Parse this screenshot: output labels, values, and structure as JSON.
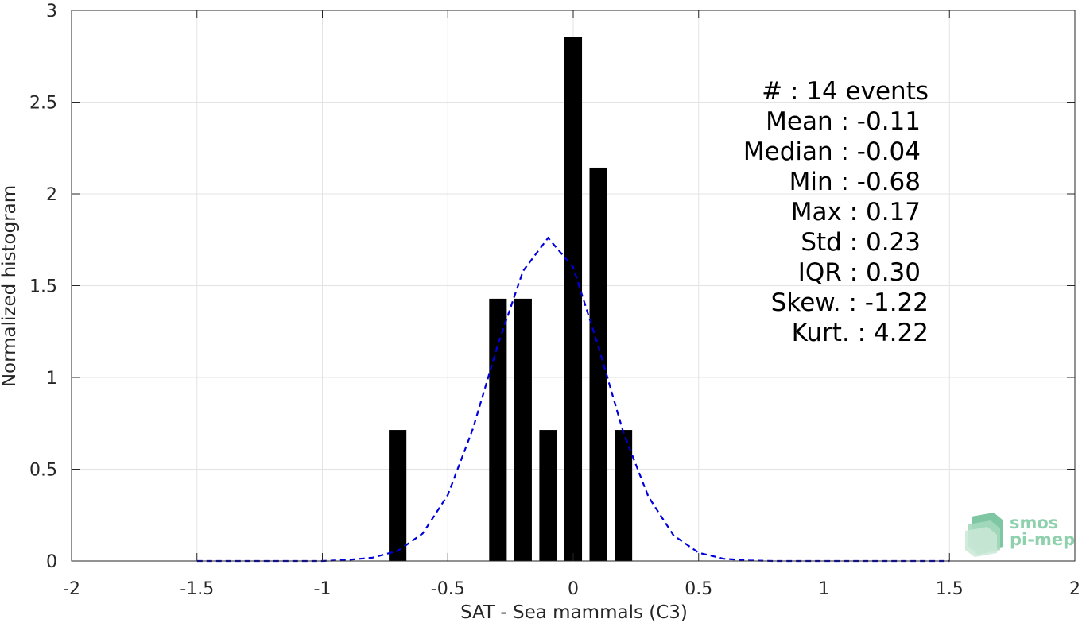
{
  "chart_data": {
    "type": "bar",
    "xlabel": "SAT - Sea mammals (C3)",
    "ylabel": "Normalized histogram",
    "xlim": [
      -2,
      2
    ],
    "ylim": [
      0,
      3
    ],
    "xticks": [
      -2,
      -1.5,
      -1,
      -0.5,
      0,
      0.5,
      1,
      1.5,
      2
    ],
    "xtick_labels": [
      "-2",
      "-1.5",
      "-1",
      "-0.5",
      "0",
      "0.5",
      "1",
      "1.5",
      "2"
    ],
    "yticks": [
      0,
      0.5,
      1,
      1.5,
      2,
      2.5,
      3
    ],
    "ytick_labels": [
      "0",
      "0.5",
      "1",
      "1.5",
      "2",
      "2.5",
      "3"
    ],
    "grid": true,
    "bar_width": 0.07,
    "bar_color": "#000000",
    "bars": [
      {
        "x": -0.7,
        "value": 0.714
      },
      {
        "x": -0.3,
        "value": 1.429
      },
      {
        "x": -0.2,
        "value": 1.429
      },
      {
        "x": -0.1,
        "value": 0.714
      },
      {
        "x": 0.0,
        "value": 2.857
      },
      {
        "x": 0.1,
        "value": 2.143
      },
      {
        "x": 0.2,
        "value": 0.714
      }
    ],
    "fit_curve": {
      "style": "dashed",
      "color": "#0000dd",
      "x": [
        -1.5,
        -1.4,
        -1.3,
        -1.2,
        -1.1,
        -1.0,
        -0.9,
        -0.8,
        -0.7,
        -0.6,
        -0.5,
        -0.4,
        -0.3,
        -0.2,
        -0.1,
        0.0,
        0.1,
        0.2,
        0.3,
        0.4,
        0.5,
        0.6,
        0.7,
        0.8,
        0.9,
        1.0,
        1.1,
        1.2,
        1.3,
        1.4,
        1.5
      ],
      "y": [
        0,
        0,
        0,
        0,
        0,
        0,
        0.006,
        0.018,
        0.055,
        0.15,
        0.36,
        0.72,
        1.18,
        1.58,
        1.76,
        1.6,
        1.17,
        0.7,
        0.35,
        0.14,
        0.045,
        0.012,
        0.003,
        0,
        0,
        0,
        0,
        0,
        0,
        0,
        0
      ]
    }
  },
  "stats": {
    "lines": [
      "#  : 14 events",
      "Mean : -0.11",
      "Median : -0.04",
      "Min : -0.68",
      "Max : 0.17",
      "Std : 0.23",
      "IQR : 0.30",
      "Skew. : -1.22",
      "Kurt. : 4.22"
    ]
  },
  "logo": {
    "line1": "smos",
    "line2": "pi-mep"
  }
}
